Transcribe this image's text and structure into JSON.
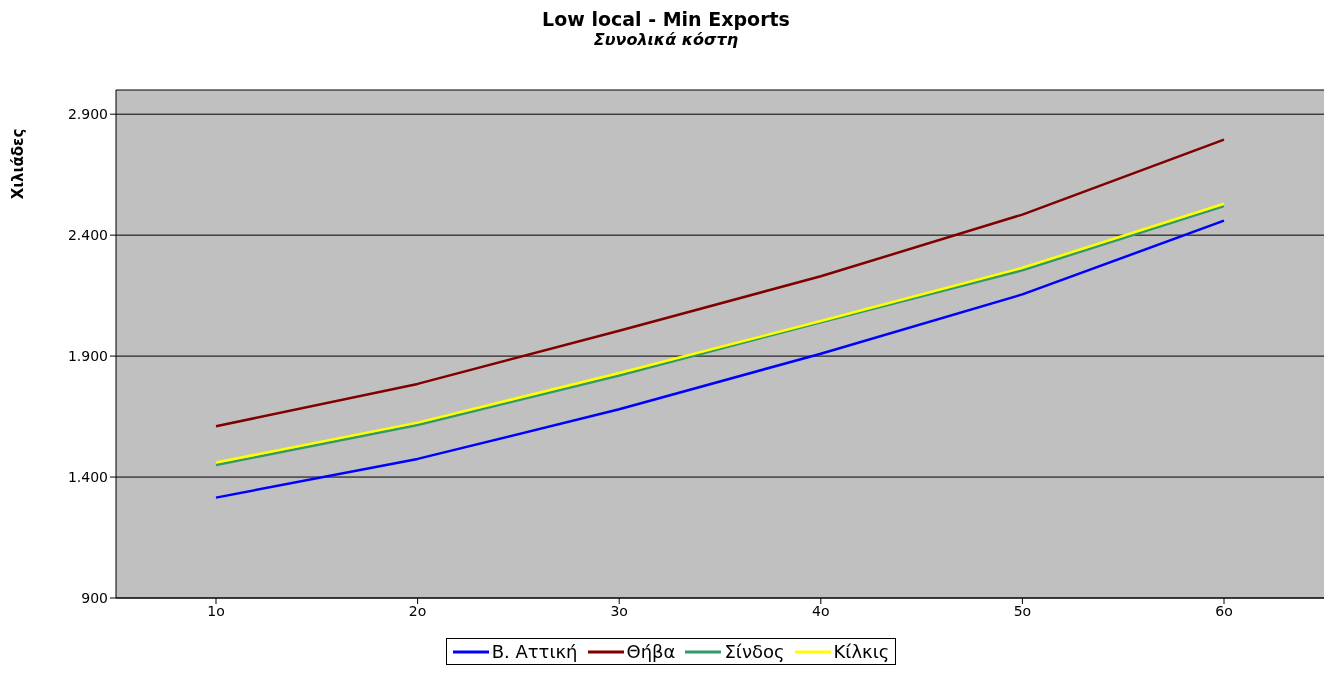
{
  "chart_data": {
    "type": "line",
    "title": "Low local - Min Exports",
    "subtitle": "Συνολικά κόστη",
    "ylabel": "Χιλιάδες",
    "categories": [
      "1ο",
      "2ο",
      "3ο",
      "4ο",
      "5ο",
      "6ο"
    ],
    "series": [
      {
        "name": "Β. Αττική",
        "color": "#0000ff",
        "values": [
          1315,
          1475,
          1680,
          1910,
          2155,
          2460
        ]
      },
      {
        "name": "Θήβα",
        "color": "#800000",
        "values": [
          1610,
          1785,
          2005,
          2230,
          2485,
          2795
        ]
      },
      {
        "name": "Σίνδος",
        "color": "#339966",
        "values": [
          1450,
          1615,
          1820,
          2040,
          2255,
          2520
        ]
      },
      {
        "name": "Κίλκις",
        "color": "#ffff00",
        "values": [
          1460,
          1625,
          1830,
          2045,
          2265,
          2530
        ]
      }
    ],
    "ylim": [
      900,
      3000
    ],
    "yticks": [
      {
        "value": 900,
        "label": "900"
      },
      {
        "value": 1400,
        "label": "1.400"
      },
      {
        "value": 1900,
        "label": "1.900"
      },
      {
        "value": 2400,
        "label": "2.400"
      },
      {
        "value": 2900,
        "label": "2.900"
      }
    ],
    "grid": "y",
    "legend": "bottom",
    "marker": "none",
    "line_style": "solid"
  }
}
